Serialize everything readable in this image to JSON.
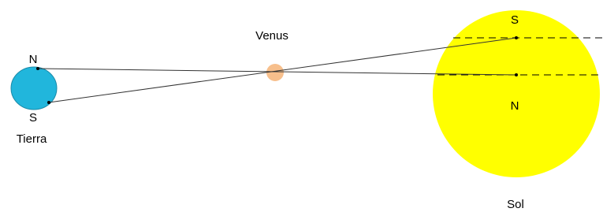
{
  "earth": {
    "north": "N",
    "south": "S",
    "label": "Tierra"
  },
  "venus": {
    "label": "Venus"
  },
  "sun": {
    "south": "S",
    "north": "N",
    "label": "Sol"
  }
}
